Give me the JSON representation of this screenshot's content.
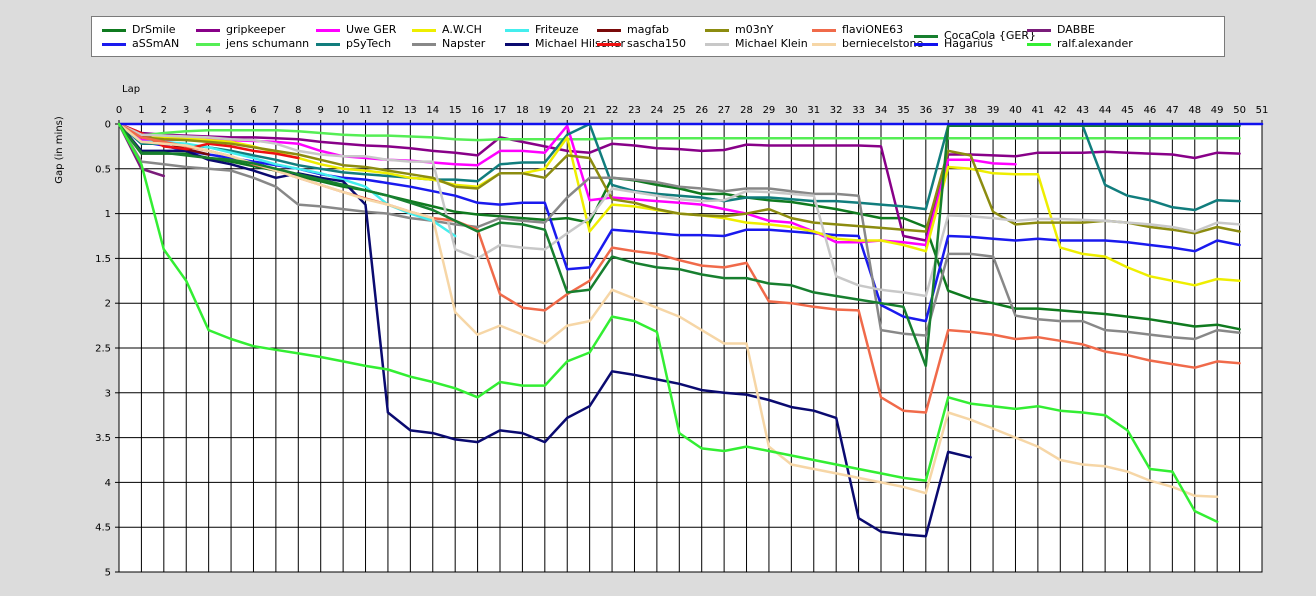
{
  "chart_data": {
    "type": "line",
    "xlabel": "Lap",
    "ylabel": "Gap (in mins)",
    "xlim": [
      0,
      51
    ],
    "ylim": [
      0,
      5
    ],
    "y_inverted": true,
    "x_ticks": [
      0,
      1,
      2,
      3,
      4,
      5,
      6,
      7,
      8,
      9,
      10,
      11,
      12,
      13,
      14,
      15,
      16,
      17,
      18,
      19,
      20,
      21,
      22,
      23,
      24,
      25,
      26,
      27,
      28,
      29,
      30,
      31,
      32,
      33,
      34,
      35,
      36,
      37,
      38,
      39,
      40,
      41,
      42,
      43,
      44,
      45,
      46,
      47,
      48,
      49,
      50,
      51
    ],
    "y_ticks": [
      0,
      0.5,
      1,
      1.5,
      2,
      2.5,
      3,
      3.5,
      4,
      4.5,
      5
    ],
    "y_tick_labels": [
      "0",
      "0.5",
      "1",
      "1.5",
      "2",
      "2.5",
      "3",
      "3.5",
      "4",
      "4.5",
      "5"
    ],
    "grid": true,
    "legend_position": "top",
    "plot_background": "#ffffff",
    "series": [
      {
        "name": "DrSmile",
        "color": "#0f7a1f",
        "values": [
          0,
          0.33,
          0.33,
          0.33,
          0.38,
          0.42,
          0.47,
          0.52,
          0.58,
          0.64,
          0.7,
          0.74,
          0.8,
          0.86,
          0.92,
          0.98,
          1.01,
          1.03,
          1.05,
          1.07,
          1.05,
          1.1,
          0.6,
          0.63,
          0.68,
          0.72,
          0.78,
          0.78,
          0.82,
          0.85,
          0.87,
          0.91,
          0.95,
          1.0,
          1.05,
          1.05,
          1.15,
          1.86,
          1.95,
          2.0,
          2.06,
          2.06,
          2.08,
          2.1,
          2.12,
          2.15,
          2.18,
          2.22,
          2.26,
          2.24,
          2.29
        ]
      },
      {
        "name": "aSSmAN",
        "color": "#1a1aee",
        "values": [
          0,
          0.2,
          0.24,
          0.3,
          0.34,
          0.38,
          0.42,
          0.46,
          0.5,
          0.56,
          0.6,
          0.62,
          0.66,
          0.7,
          0.75,
          0.8,
          0.88,
          0.9,
          0.88,
          0.88,
          1.62,
          1.6,
          1.18,
          1.2,
          1.22,
          1.24,
          1.24,
          1.25,
          1.18,
          1.18,
          1.2,
          1.22,
          1.24,
          1.25,
          2.02,
          2.15,
          2.2,
          1.25,
          1.26,
          1.28,
          1.3,
          1.28,
          1.3,
          1.3,
          1.3,
          1.32,
          1.35,
          1.38,
          1.42,
          1.3,
          1.35
        ]
      },
      {
        "name": "gripkeeper",
        "color": "#880088",
        "values": [
          0,
          0.1,
          0.12,
          0.13,
          0.14,
          0.15,
          0.15,
          0.16,
          0.17,
          0.2,
          0.22,
          0.24,
          0.25,
          0.27,
          0.3,
          0.32,
          0.35,
          0.15,
          0.2,
          0.25,
          0.3,
          0.32,
          0.22,
          0.24,
          0.27,
          0.28,
          0.3,
          0.29,
          0.23,
          0.24,
          0.24,
          0.24,
          0.24,
          0.24,
          0.25,
          1.25,
          1.3,
          0.34,
          0.34,
          0.35,
          0.36,
          0.32,
          0.32,
          0.32,
          0.31,
          0.32,
          0.33,
          0.34,
          0.38,
          0.32,
          0.33
        ]
      },
      {
        "name": "jens  schumann",
        "color": "#55ee55",
        "values": [
          0,
          0.13,
          0.1,
          0.08,
          0.07,
          0.07,
          0.07,
          0.07,
          0.08,
          0.1,
          0.12,
          0.13,
          0.13,
          0.14,
          0.15,
          0.17,
          0.18,
          0.17,
          0.17,
          0.17,
          0.17,
          0.17,
          0.16,
          0.16,
          0.16,
          0.16,
          0.16,
          0.16,
          0.16,
          0.16,
          0.16,
          0.16,
          0.16,
          0.16,
          0.16,
          0.16,
          0.16,
          0.16,
          0.16,
          0.16,
          0.16,
          0.16,
          0.16,
          0.16,
          0.16,
          0.16,
          0.16,
          0.16,
          0.16,
          0.16,
          0.16
        ]
      },
      {
        "name": "Uwe GER",
        "color": "#ff00ff",
        "values": [
          0,
          0.18,
          0.18,
          0.17,
          0.17,
          0.18,
          0.19,
          0.2,
          0.22,
          0.3,
          0.36,
          0.38,
          0.4,
          0.41,
          0.43,
          0.45,
          0.46,
          0.3,
          0.3,
          0.32,
          0.02,
          0.85,
          0.82,
          0.84,
          0.86,
          0.88,
          0.9,
          0.95,
          1.0,
          1.08,
          1.1,
          1.2,
          1.32,
          1.32,
          1.3,
          1.32,
          1.35,
          0.4,
          0.4,
          0.44,
          0.45,
          null,
          null,
          null,
          null,
          null,
          null,
          null,
          null,
          null,
          null
        ]
      },
      {
        "name": "pSyTech",
        "color": "#117d7d",
        "values": [
          0,
          0.22,
          0.22,
          0.23,
          0.26,
          0.3,
          0.35,
          0.4,
          0.46,
          0.5,
          0.54,
          0.56,
          0.58,
          0.6,
          0.62,
          0.62,
          0.64,
          0.45,
          0.43,
          0.43,
          0.12,
          0.0,
          0.68,
          0.75,
          0.78,
          0.8,
          0.82,
          0.86,
          0.82,
          0.82,
          0.84,
          0.86,
          0.86,
          0.88,
          0.9,
          0.92,
          0.95,
          0.02,
          0.02,
          0.02,
          0.02,
          0.02,
          0.02,
          0.02,
          0.68,
          0.8,
          0.85,
          0.93,
          0.96,
          0.85,
          0.86
        ]
      },
      {
        "name": "A.W.CH",
        "color": "#eeee00",
        "values": [
          0,
          0.14,
          0.15,
          0.16,
          0.18,
          0.2,
          0.25,
          0.32,
          0.38,
          0.45,
          0.5,
          0.52,
          0.55,
          0.6,
          0.62,
          0.68,
          0.7,
          0.55,
          0.55,
          0.5,
          0.15,
          1.2,
          0.9,
          0.92,
          0.96,
          1.0,
          1.02,
          1.05,
          1.1,
          1.12,
          1.15,
          1.2,
          1.28,
          1.3,
          1.3,
          1.35,
          1.42,
          0.48,
          0.5,
          0.55,
          0.56,
          0.56,
          1.38,
          1.45,
          1.48,
          1.6,
          1.7,
          1.75,
          1.8,
          1.73,
          1.75
        ]
      },
      {
        "name": "Napster",
        "color": "#888888",
        "values": [
          0,
          0.42,
          0.45,
          0.48,
          0.5,
          0.52,
          0.6,
          0.7,
          0.9,
          0.92,
          0.95,
          0.98,
          1.0,
          1.05,
          1.08,
          1.12,
          1.15,
          1.05,
          1.08,
          1.1,
          0.82,
          0.6,
          0.6,
          0.62,
          0.65,
          0.7,
          0.72,
          0.75,
          0.72,
          0.72,
          0.75,
          0.78,
          0.78,
          0.8,
          2.3,
          2.34,
          2.36,
          1.45,
          1.45,
          1.48,
          2.14,
          2.18,
          2.2,
          2.2,
          2.3,
          2.32,
          2.35,
          2.38,
          2.4,
          2.3,
          2.33
        ]
      },
      {
        "name": "Friteuze",
        "color": "#44eeee",
        "values": [
          0,
          0.2,
          0.2,
          0.22,
          0.26,
          0.32,
          0.38,
          0.45,
          0.5,
          0.55,
          0.62,
          0.7,
          0.9,
          1.0,
          1.08,
          1.25,
          null,
          null,
          null,
          null,
          null,
          null,
          null,
          null,
          null,
          null,
          null,
          null,
          null,
          null,
          null,
          null,
          null,
          null,
          null,
          null,
          null,
          null,
          null,
          null,
          null,
          null,
          null,
          null,
          null,
          null,
          null,
          null,
          null,
          null,
          null
        ]
      },
      {
        "name": "Michael Hilscher",
        "color": "#0a0a70",
        "values": [
          0,
          0.3,
          0.3,
          0.3,
          0.4,
          0.45,
          0.52,
          0.6,
          0.55,
          0.6,
          0.64,
          0.9,
          3.22,
          3.42,
          3.45,
          3.52,
          3.55,
          3.42,
          3.45,
          3.55,
          3.28,
          3.15,
          2.76,
          2.8,
          2.85,
          2.9,
          2.97,
          3.0,
          3.02,
          3.08,
          3.16,
          3.2,
          3.28,
          4.4,
          4.55,
          4.58,
          4.6,
          3.66,
          3.72,
          null,
          null,
          null,
          null,
          null,
          null,
          null,
          null,
          null,
          null,
          null,
          null
        ]
      },
      {
        "name": "magfab",
        "color": "#7a0a0a",
        "values": [
          0,
          0.12,
          0.2,
          0.28,
          0.34,
          null,
          null,
          null,
          null,
          null,
          null,
          null,
          null,
          null,
          null,
          null,
          null,
          null,
          null,
          null,
          null,
          null,
          null,
          null,
          null,
          null,
          null,
          null,
          null,
          null,
          null,
          null,
          null,
          null,
          null,
          null,
          null,
          null,
          null,
          null,
          null,
          null,
          null,
          null,
          null,
          null,
          null,
          null,
          null,
          null,
          null
        ]
      },
      {
        "name": "sascha150",
        "color": "#ee1111",
        "values": [
          0,
          0.1,
          0.25,
          0.28,
          0.22,
          0.25,
          0.3,
          0.33,
          0.38,
          null,
          null,
          null,
          null,
          null,
          null,
          null,
          null,
          null,
          null,
          null,
          null,
          null,
          null,
          null,
          null,
          null,
          null,
          null,
          null,
          null,
          null,
          null,
          null,
          null,
          null,
          null,
          null,
          null,
          null,
          null,
          null,
          null,
          null,
          null,
          null,
          null,
          null,
          null,
          null,
          null,
          null
        ]
      },
      {
        "name": "m03nY",
        "color": "#8c8c10",
        "values": [
          0,
          0.15,
          0.17,
          0.18,
          0.2,
          0.22,
          0.26,
          0.3,
          0.34,
          0.4,
          0.46,
          0.48,
          0.52,
          0.56,
          0.6,
          0.7,
          0.72,
          0.55,
          0.55,
          0.6,
          0.35,
          0.38,
          0.84,
          0.88,
          0.95,
          1.0,
          1.02,
          1.03,
          1.0,
          0.95,
          1.05,
          1.1,
          1.12,
          1.14,
          1.16,
          1.18,
          1.2,
          0.3,
          0.35,
          0.98,
          1.12,
          1.1,
          1.1,
          1.1,
          1.08,
          1.1,
          1.15,
          1.18,
          1.22,
          1.15,
          1.2
        ]
      },
      {
        "name": "Michael Klein",
        "color": "#c8c8c8",
        "values": [
          0,
          0.12,
          0.13,
          0.14,
          0.15,
          0.17,
          0.18,
          0.22,
          0.3,
          0.34,
          0.36,
          0.36,
          0.4,
          0.42,
          0.42,
          1.4,
          1.5,
          1.35,
          1.38,
          1.4,
          1.22,
          1.05,
          0.72,
          0.76,
          0.8,
          0.84,
          0.86,
          0.85,
          0.75,
          0.76,
          0.78,
          0.8,
          1.7,
          1.8,
          1.85,
          1.88,
          1.92,
          1.02,
          1.03,
          1.05,
          1.08,
          1.06,
          1.06,
          1.07,
          1.08,
          1.1,
          1.12,
          1.15,
          1.2,
          1.1,
          1.12
        ]
      },
      {
        "name": "flaviONE63",
        "color": "#f06a4a",
        "values": [
          0,
          0.15,
          0.2,
          0.25,
          0.3,
          0.36,
          0.45,
          0.52,
          0.6,
          0.68,
          0.76,
          0.83,
          0.9,
          0.98,
          1.05,
          1.08,
          1.18,
          1.9,
          2.05,
          2.08,
          1.9,
          1.75,
          1.38,
          1.42,
          1.45,
          1.52,
          1.58,
          1.6,
          1.55,
          1.98,
          2.0,
          2.04,
          2.07,
          2.08,
          3.05,
          3.2,
          3.22,
          2.3,
          2.32,
          2.35,
          2.4,
          2.38,
          2.42,
          2.46,
          2.54,
          2.58,
          2.64,
          2.68,
          2.72,
          2.65,
          2.67
        ]
      },
      {
        "name": "berniecelstone",
        "color": "#f6d6a6",
        "values": [
          0,
          0.2,
          0.22,
          0.24,
          0.3,
          0.36,
          0.44,
          0.52,
          0.6,
          0.68,
          0.76,
          0.84,
          0.9,
          0.98,
          1.05,
          2.1,
          2.35,
          2.25,
          2.35,
          2.45,
          2.25,
          2.2,
          1.85,
          1.95,
          2.05,
          2.15,
          2.3,
          2.45,
          2.45,
          3.6,
          3.8,
          3.85,
          3.9,
          3.95,
          4.0,
          4.05,
          4.12,
          3.22,
          3.3,
          3.4,
          3.5,
          3.6,
          3.75,
          3.8,
          3.82,
          3.88,
          3.98,
          4.05,
          4.15,
          4.16,
          null
        ]
      },
      {
        "name": "CocaCola {GER}",
        "color": "#177f2f",
        "values": [
          0,
          0.32,
          0.32,
          0.35,
          0.38,
          0.4,
          0.44,
          0.5,
          0.56,
          0.62,
          0.68,
          0.74,
          0.8,
          0.88,
          0.96,
          1.08,
          1.2,
          1.1,
          1.12,
          1.18,
          1.88,
          1.85,
          1.48,
          1.55,
          1.6,
          1.62,
          1.68,
          1.72,
          1.72,
          1.78,
          1.8,
          1.88,
          1.92,
          1.96,
          2.0,
          2.04,
          2.7,
          0.02,
          0.02,
          0.02,
          0.02,
          0.02,
          0.02,
          0.02,
          0.02,
          0.02,
          0.02,
          0.02,
          0.02,
          0.02,
          0.02
        ]
      },
      {
        "name": "Hagarius",
        "color": "#1111ee",
        "values": [
          0,
          0.0,
          0.0,
          0.0,
          0.0,
          0.0,
          0.0,
          0.0,
          0.0,
          0.0,
          0.0,
          0.0,
          0.0,
          0.0,
          0.0,
          0.0,
          0.0,
          0.0,
          0.0,
          0.0,
          0.0,
          0.0,
          0.0,
          0.0,
          0.0,
          0.0,
          0.0,
          0.0,
          0.0,
          0.0,
          0.0,
          0.0,
          0.0,
          0.0,
          0.0,
          0.0,
          0.0,
          0.0,
          0.0,
          0.0,
          0.0,
          0.0,
          0.0,
          0.0,
          0.0,
          0.0,
          0.0,
          0.0,
          0.0,
          0.0,
          0.0,
          0.0
        ]
      },
      {
        "name": "DABBE",
        "color": "#7a1c7a",
        "values": [
          0,
          0.5,
          0.58,
          null,
          null,
          null,
          null,
          null,
          null,
          null,
          null,
          null,
          null,
          null,
          null,
          null,
          null,
          null,
          null,
          null,
          null,
          null,
          null,
          null,
          null,
          null,
          null,
          null,
          null,
          null,
          null,
          null,
          null,
          null,
          null,
          null,
          null,
          null,
          null,
          null,
          null,
          null,
          null,
          null,
          null,
          null,
          null,
          null,
          null,
          null,
          null
        ]
      },
      {
        "name": "ralf.alexander",
        "color": "#33ee33",
        "values": [
          0,
          0.45,
          1.4,
          1.75,
          2.3,
          2.4,
          2.48,
          2.52,
          2.56,
          2.6,
          2.65,
          2.7,
          2.74,
          2.82,
          2.88,
          2.95,
          3.05,
          2.88,
          2.92,
          2.92,
          2.65,
          2.55,
          2.15,
          2.2,
          2.32,
          3.45,
          3.62,
          3.65,
          3.6,
          3.65,
          3.7,
          3.75,
          3.8,
          3.85,
          3.9,
          3.95,
          3.98,
          3.05,
          3.12,
          3.15,
          3.18,
          3.15,
          3.2,
          3.22,
          3.25,
          3.42,
          3.85,
          3.88,
          4.32,
          4.44,
          null
        ]
      }
    ]
  }
}
